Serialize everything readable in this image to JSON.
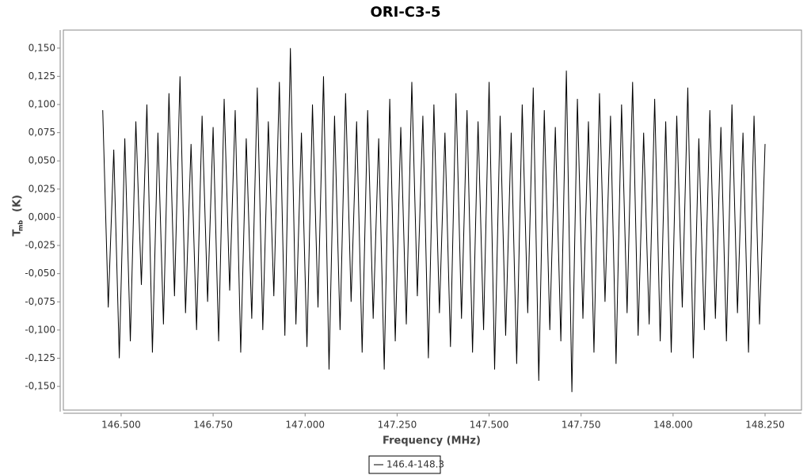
{
  "chart_data": {
    "type": "line",
    "title": "ORI-C3-5",
    "x_label": "Frequency (MHz)",
    "y_label": "T",
    "y_label_sub": "mb",
    "y_label_unit": "(K)",
    "xlim": [
      146.343,
      148.349
    ],
    "ylim": [
      -0.171,
      0.166
    ],
    "xticks": [
      {
        "value": 146.5,
        "label": "146.500"
      },
      {
        "value": 146.75,
        "label": "146.750"
      },
      {
        "value": 147,
        "label": "147.000"
      },
      {
        "value": 147.25,
        "label": "147.250"
      },
      {
        "value": 147.5,
        "label": "147.500"
      },
      {
        "value": 147.75,
        "label": "147.750"
      },
      {
        "value": 148,
        "label": "148.000"
      },
      {
        "value": 148.25,
        "label": "148.250"
      }
    ],
    "yticks": [
      {
        "value": 0.15,
        "label": "0,150"
      },
      {
        "value": 0.125,
        "label": "0,125"
      },
      {
        "value": 0.1,
        "label": "0,100"
      },
      {
        "value": 0.075,
        "label": "0,075"
      },
      {
        "value": 0.05,
        "label": "0,050"
      },
      {
        "value": 0.025,
        "label": "0,025"
      },
      {
        "value": 0,
        "label": "0,000"
      },
      {
        "value": -0.025,
        "label": "-0,025"
      },
      {
        "value": -0.05,
        "label": "-0,050"
      },
      {
        "value": -0.075,
        "label": "-0,075"
      },
      {
        "value": -0.1,
        "label": "-0,100"
      },
      {
        "value": -0.125,
        "label": "-0,125"
      },
      {
        "value": -0.15,
        "label": "-0,150"
      }
    ],
    "x": [
      146.45,
      146.465,
      146.48,
      146.495,
      146.51,
      146.525,
      146.54,
      146.555,
      146.57,
      146.585,
      146.6,
      146.615,
      146.63,
      146.645,
      146.66,
      146.675,
      146.69,
      146.705,
      146.72,
      146.735,
      146.75,
      146.765,
      146.78,
      146.795,
      146.81,
      146.825,
      146.84,
      146.855,
      146.87,
      146.885,
      146.9,
      146.915,
      146.93,
      146.945,
      146.96,
      146.975,
      146.99,
      147.005,
      147.02,
      147.035,
      147.05,
      147.065,
      147.08,
      147.095,
      147.11,
      147.125,
      147.14,
      147.155,
      147.17,
      147.185,
      147.2,
      147.215,
      147.23,
      147.245,
      147.26,
      147.275,
      147.29,
      147.305,
      147.32,
      147.335,
      147.35,
      147.365,
      147.38,
      147.395,
      147.41,
      147.425,
      147.44,
      147.455,
      147.47,
      147.485,
      147.5,
      147.515,
      147.53,
      147.545,
      147.56,
      147.575,
      147.59,
      147.605,
      147.62,
      147.635,
      147.65,
      147.665,
      147.68,
      147.695,
      147.71,
      147.725,
      147.74,
      147.755,
      147.77,
      147.785,
      147.8,
      147.815,
      147.83,
      147.845,
      147.86,
      147.875,
      147.89,
      147.905,
      147.92,
      147.935,
      147.95,
      147.965,
      147.98,
      147.995,
      148.01,
      148.025,
      148.04,
      148.055,
      148.07,
      148.085,
      148.1,
      148.115,
      148.13,
      148.145,
      148.16,
      148.175,
      148.19,
      148.205,
      148.22,
      148.235,
      148.25
    ],
    "series": [
      {
        "name": "146.4-148.3",
        "color": "#000000",
        "values": [
          0.095,
          -0.08,
          0.06,
          -0.125,
          0.07,
          -0.11,
          0.085,
          -0.06,
          0.1,
          -0.12,
          0.075,
          -0.095,
          0.11,
          -0.07,
          0.125,
          -0.085,
          0.065,
          -0.1,
          0.09,
          -0.075,
          0.08,
          -0.11,
          0.105,
          -0.065,
          0.095,
          -0.12,
          0.07,
          -0.09,
          0.115,
          -0.1,
          0.085,
          -0.07,
          0.12,
          -0.105,
          0.15,
          -0.095,
          0.075,
          -0.115,
          0.1,
          -0.08,
          0.125,
          -0.135,
          0.09,
          -0.1,
          0.11,
          -0.075,
          0.085,
          -0.12,
          0.095,
          -0.09,
          0.07,
          -0.135,
          0.105,
          -0.11,
          0.08,
          -0.095,
          0.12,
          -0.07,
          0.09,
          -0.125,
          0.1,
          -0.085,
          0.075,
          -0.115,
          0.11,
          -0.09,
          0.095,
          -0.12,
          0.085,
          -0.1,
          0.12,
          -0.135,
          0.09,
          -0.105,
          0.075,
          -0.13,
          0.1,
          -0.085,
          0.115,
          -0.145,
          0.095,
          -0.1,
          0.08,
          -0.11,
          0.13,
          -0.155,
          0.105,
          -0.09,
          0.085,
          -0.12,
          0.11,
          -0.075,
          0.09,
          -0.13,
          0.1,
          -0.085,
          0.12,
          -0.105,
          0.075,
          -0.095,
          0.105,
          -0.11,
          0.085,
          -0.12,
          0.09,
          -0.08,
          0.115,
          -0.125,
          0.07,
          -0.1,
          0.095,
          -0.09,
          0.08,
          -0.11,
          0.1,
          -0.085,
          0.075,
          -0.12,
          0.09,
          -0.095,
          0.065
        ]
      }
    ],
    "legend": "bottom",
    "grid": false
  }
}
